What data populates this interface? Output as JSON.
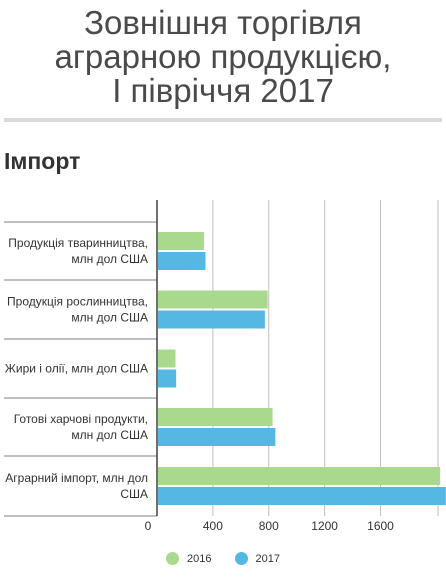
{
  "header": {
    "title_lines": [
      "Зовнішня торгівля",
      "аграрною продукцією,",
      "І півріччя 2017"
    ],
    "section_title": "Імпорт"
  },
  "colors": {
    "series_2016": "#a9d98c",
    "series_2017": "#54b8e2",
    "grid": "#bfbfbf",
    "axis": "#333333"
  },
  "chart_data": {
    "type": "bar",
    "orientation": "horizontal",
    "categories": [
      [
        "Продукція тваринництва,",
        "млн дол США"
      ],
      [
        "Продукція рослинництва,",
        "млн дол США"
      ],
      [
        "Жири і олії, млн дол США"
      ],
      [
        "Готові харчові продукти,",
        "млн дол США"
      ],
      [
        "Аграрний імпорт, млн дол",
        "США"
      ]
    ],
    "series": [
      {
        "name": "2016",
        "values": [
          330,
          785,
          125,
          820,
          2020
        ]
      },
      {
        "name": "2017",
        "values": [
          340,
          765,
          130,
          840,
          2060
        ]
      }
    ],
    "x_ticks": [
      0,
      400,
      800,
      1200,
      1600
    ],
    "xlim": [
      0,
      2060
    ],
    "grid": true,
    "legend_position": "bottom"
  }
}
